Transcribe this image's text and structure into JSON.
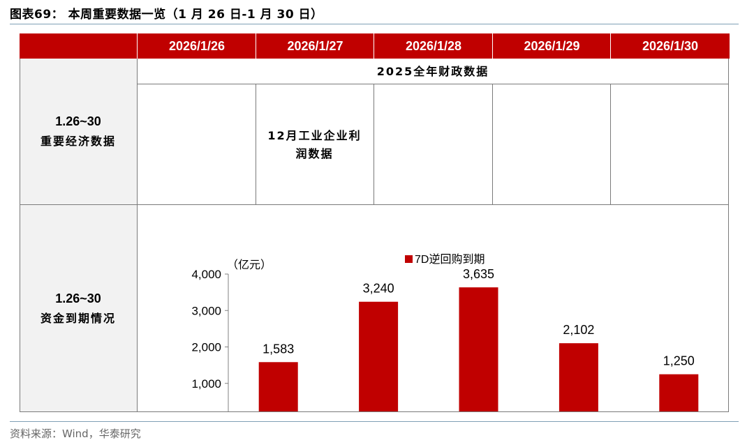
{
  "title": "图表69：  本周重要数据一览（1 月 26 日-1 月 30 日）",
  "columns": [
    "2026/1/26",
    "2026/1/27",
    "2026/1/28",
    "2026/1/29",
    "2026/1/30"
  ],
  "rows": {
    "econ": {
      "line1": "1.26~30",
      "line2": "重要经济数据"
    },
    "funds": {
      "line1": "1.26~30",
      "line2": "资金到期情况"
    }
  },
  "econ_events": {
    "span_all": "2025全年财政数据",
    "jan27_line1": "12月工业企业利",
    "jan27_line2": "润数据"
  },
  "chart_data": {
    "type": "bar",
    "categories": [
      "2026-01-26",
      "2026-01-27",
      "2026-01-28",
      "2026-01-29",
      "2026-01-30"
    ],
    "series": [
      {
        "name": "7D逆回购到期",
        "values": [
          1583,
          3240,
          3635,
          2102,
          1250
        ]
      }
    ],
    "data_labels": [
      "1,583",
      "3,240",
      "3,635",
      "2,102",
      "1,250"
    ],
    "unit": "（亿元）",
    "ylim": [
      0,
      4000
    ],
    "yticks": [
      "0",
      "1,000",
      "2,000",
      "3,000",
      "4,000"
    ],
    "legend_position": "top-center",
    "grid": false,
    "bar_color": "#c00000"
  },
  "source": "资料来源：Wind，华泰研究"
}
